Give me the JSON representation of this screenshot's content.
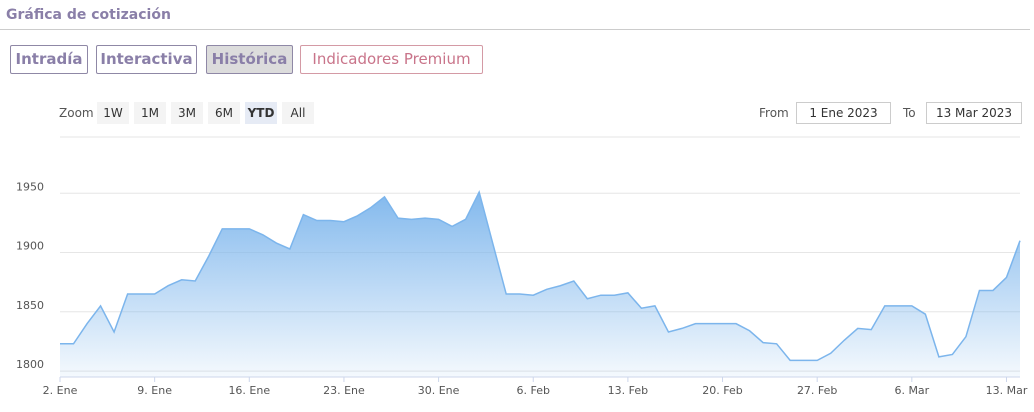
{
  "header": {
    "title": "Gráfica de cotización"
  },
  "tabs": [
    "Intradía",
    "Interactiva",
    "Histórica",
    "Indicadores Premium"
  ],
  "zoom": {
    "label": "Zoom",
    "buttons": [
      "1W",
      "1M",
      "3M",
      "6M",
      "YTD",
      "All"
    ]
  },
  "range": {
    "from_label": "From",
    "from": "1 Ene 2023",
    "to_label": "To",
    "to": "13 Mar 2023"
  },
  "chart_data": {
    "type": "area",
    "color": "#7cb5ec",
    "grid": true,
    "ylim": [
      1795,
      2000
    ],
    "yticks": [
      1800,
      1850,
      1900,
      1950
    ],
    "categories": [
      "2. Ene",
      null,
      null,
      null,
      null,
      null,
      null,
      "9. Ene",
      null,
      null,
      null,
      null,
      null,
      null,
      "16. Ene",
      null,
      null,
      null,
      null,
      null,
      null,
      "23. Ene",
      null,
      null,
      null,
      null,
      null,
      null,
      "30. Ene",
      null,
      null,
      null,
      null,
      null,
      null,
      "6. Feb",
      null,
      null,
      null,
      null,
      null,
      null,
      "13. Feb",
      null,
      null,
      null,
      null,
      null,
      null,
      "20. Feb",
      null,
      null,
      null,
      null,
      null,
      null,
      "27. Feb",
      null,
      null,
      null,
      null,
      null,
      null,
      "6. Mar",
      null,
      null,
      null,
      null,
      null,
      null,
      "13. Mar",
      null
    ],
    "values": [
      1823,
      1823,
      1840,
      1855,
      1833,
      1865,
      1865,
      1865,
      1872,
      1877,
      1876,
      1897,
      1920,
      1920,
      1920,
      1915,
      1908,
      1903,
      1932,
      1927,
      1927,
      1926,
      1931,
      1938,
      1947,
      1929,
      1928,
      1929,
      1928,
      1922,
      1928,
      1951,
      1908,
      1865,
      1865,
      1864,
      1869,
      1872,
      1876,
      1861,
      1864,
      1864,
      1866,
      1853,
      1855,
      1833,
      1836,
      1840,
      1840,
      1840,
      1840,
      1834,
      1824,
      1823,
      1809,
      1809,
      1809,
      1815,
      1826,
      1836,
      1835,
      1855,
      1855,
      1855,
      1848,
      1812,
      1814,
      1829,
      1868,
      1868,
      1879,
      1910
    ]
  }
}
